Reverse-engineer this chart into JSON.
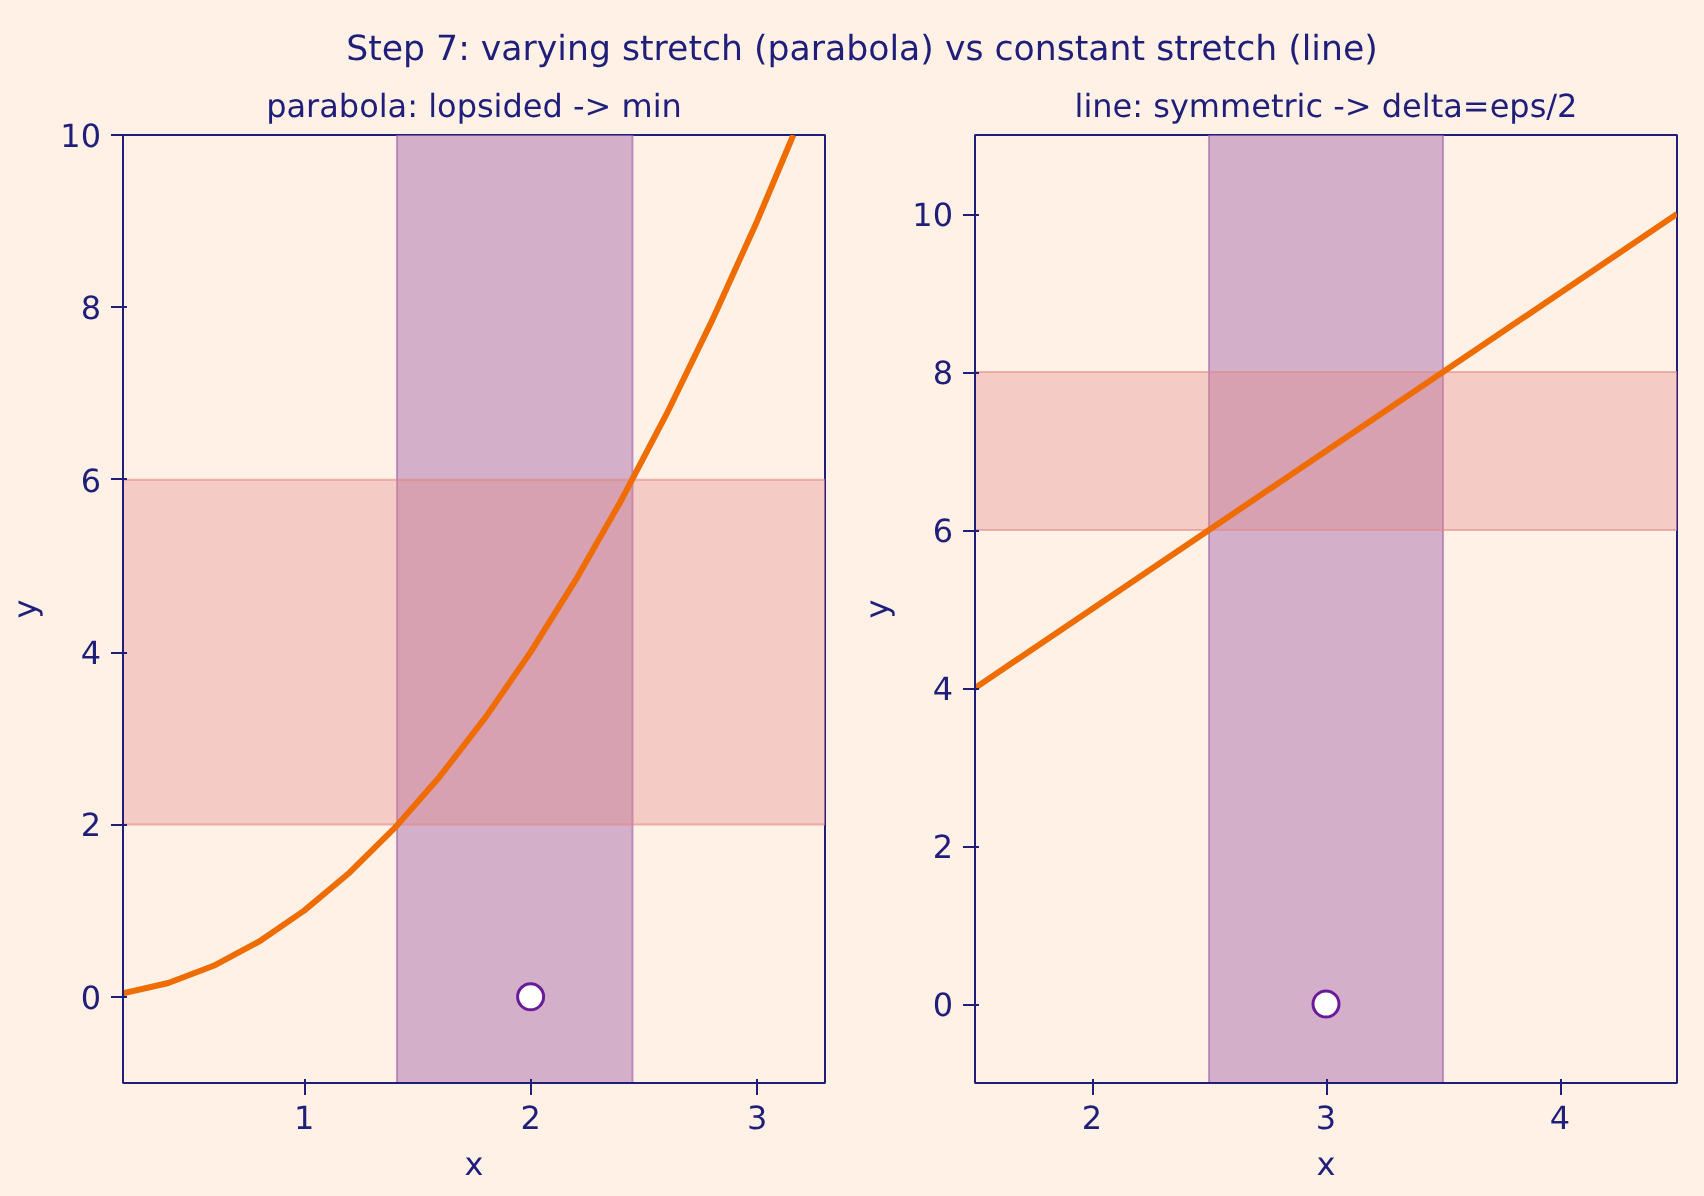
{
  "chart_data": [
    {
      "type": "line",
      "title": "parabola: lopsided -> min",
      "annotations": [
        "Step 7: varying stretch (parabola) vs constant stretch (line)"
      ],
      "xlabel": "x",
      "ylabel": "y",
      "xlim": [
        0.2,
        3.3
      ],
      "ylim": [
        -1,
        10
      ],
      "xticks": [
        1,
        2,
        3
      ],
      "yticks": [
        0,
        2,
        4,
        6,
        8,
        10
      ],
      "grid": false,
      "series": [
        {
          "color": "#ee6c00",
          "x": [
            0.2,
            0.4,
            0.6,
            0.8,
            1.0,
            1.2,
            1.4,
            1.6,
            1.8,
            2.0,
            2.2,
            2.4,
            2.6,
            2.8,
            3.0,
            3.16
          ],
          "values": [
            0.04,
            0.16,
            0.36,
            0.64,
            1.0,
            1.44,
            1.96,
            2.56,
            3.24,
            4.0,
            4.84,
            5.76,
            6.76,
            7.84,
            9.0,
            10.0
          ]
        },
        {
          "type": "scatter",
          "color": "#6a1b9a",
          "marker": "circle",
          "x": [
            2
          ],
          "values": [
            0
          ]
        }
      ],
      "bands": [
        {
          "axis": "x",
          "from": 1.41,
          "to": 2.45,
          "color": "#a060a8"
        },
        {
          "axis": "y",
          "from": 2,
          "to": 6,
          "color": "#e08888"
        }
      ]
    },
    {
      "type": "line",
      "title": "line: symmetric -> delta=eps/2",
      "xlabel": "x",
      "ylabel": "y",
      "xlim": [
        1.5,
        4.5
      ],
      "ylim": [
        -1,
        11
      ],
      "xticks": [
        2,
        3,
        4
      ],
      "yticks": [
        0,
        2,
        4,
        6,
        8,
        10
      ],
      "grid": false,
      "series": [
        {
          "color": "#ee6c00",
          "x": [
            1.5,
            4.5
          ],
          "values": [
            4,
            10
          ]
        },
        {
          "type": "scatter",
          "color": "#6a1b9a",
          "marker": "circle",
          "x": [
            3
          ],
          "values": [
            0
          ]
        }
      ],
      "bands": [
        {
          "axis": "x",
          "from": 2.5,
          "to": 3.5,
          "color": "#a060a8"
        },
        {
          "axis": "y",
          "from": 6,
          "to": 8,
          "color": "#e08888"
        }
      ]
    }
  ]
}
